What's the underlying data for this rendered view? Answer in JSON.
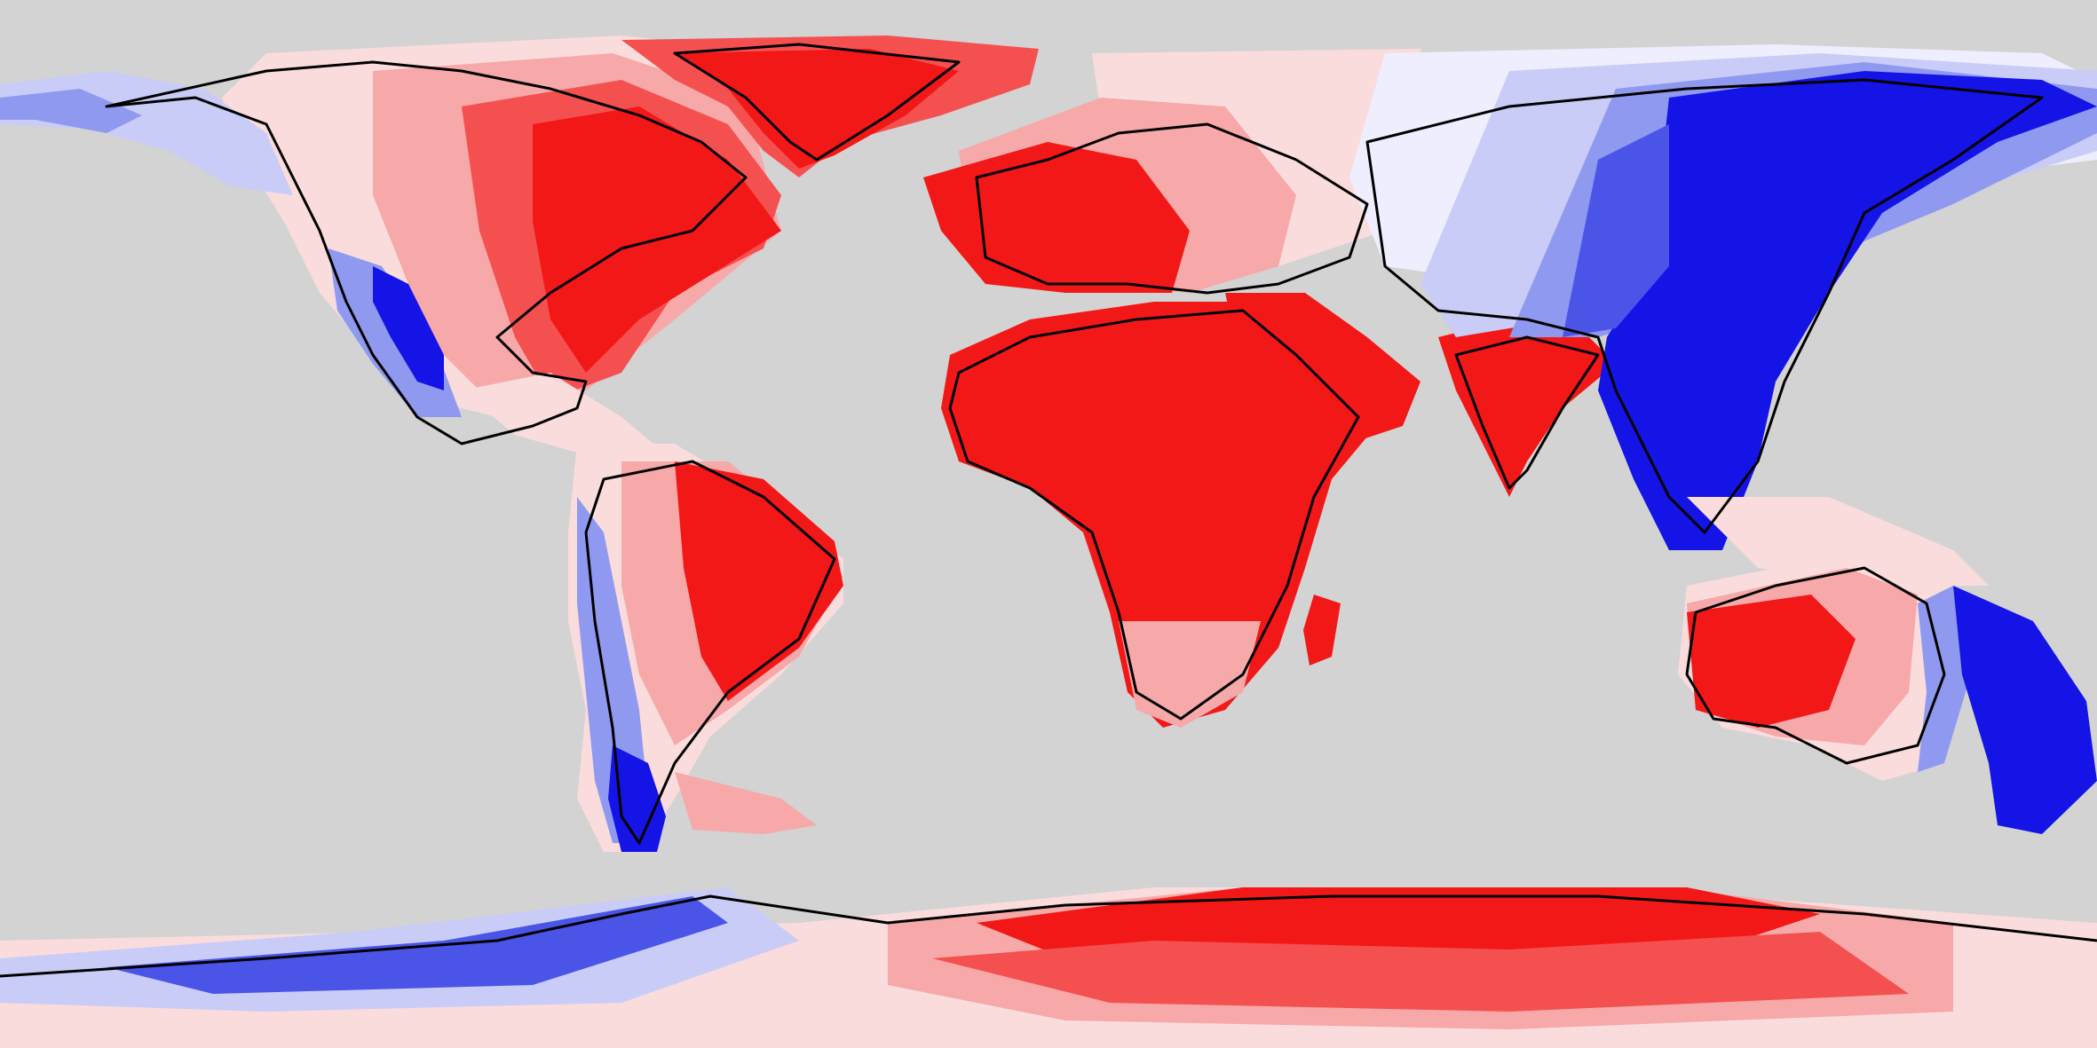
{
  "map": {
    "projection": "equirectangular",
    "colors": {
      "ocean": "#d3d3d3",
      "strong_red": "#f21818",
      "red": "#f55050",
      "light_red": "#f7a8a8",
      "pale_red": "#fbdcdc",
      "near_white": "#eeeeff",
      "pale_blue": "#c8ccf7",
      "light_blue": "#8f99ef",
      "blue": "#4a55e8",
      "strong_blue": "#1414e6",
      "coastline": "#000000"
    },
    "regions": [
      "north-america",
      "greenland",
      "central-america",
      "south-america",
      "europe",
      "africa",
      "middle-east",
      "india",
      "siberia",
      "east-asia",
      "southeast-asia",
      "australia",
      "new-zealand",
      "madagascar",
      "antarctica"
    ]
  }
}
